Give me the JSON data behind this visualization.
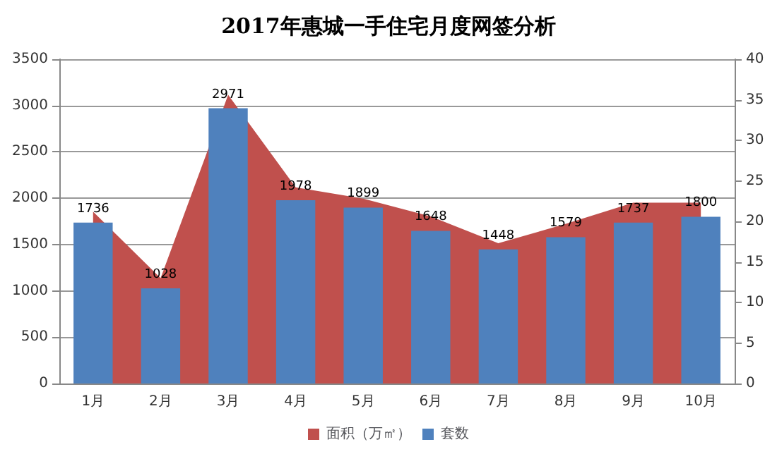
{
  "chart_data": {
    "type": "bar",
    "title": "2017年惠城一手住宅月度网签分析",
    "categories": [
      "1月",
      "2月",
      "3月",
      "4月",
      "5月",
      "6月",
      "7月",
      "8月",
      "9月",
      "10月"
    ],
    "series": [
      {
        "name": "面积（万㎡）",
        "type": "area",
        "axis": "y2",
        "color": "#c0504d",
        "values": [
          21.2,
          13.0,
          35.6,
          24.2,
          22.8,
          20.6,
          17.3,
          19.7,
          22.3,
          22.3
        ]
      },
      {
        "name": "套数",
        "color": "#4f81bd",
        "values": [
          1736,
          1028,
          2971,
          1978,
          1899,
          1648,
          1448,
          1579,
          1737,
          1800
        ],
        "data_labels": true
      }
    ],
    "ylim": [
      0,
      3500
    ],
    "yticks": [
      0,
      500,
      1000,
      1500,
      2000,
      2500,
      3000,
      3500
    ],
    "y2lim": [
      0,
      40
    ],
    "y2ticks": [
      0,
      5,
      10,
      15,
      20,
      25,
      30,
      35,
      40
    ],
    "grid": "y",
    "legend": "bottom"
  }
}
